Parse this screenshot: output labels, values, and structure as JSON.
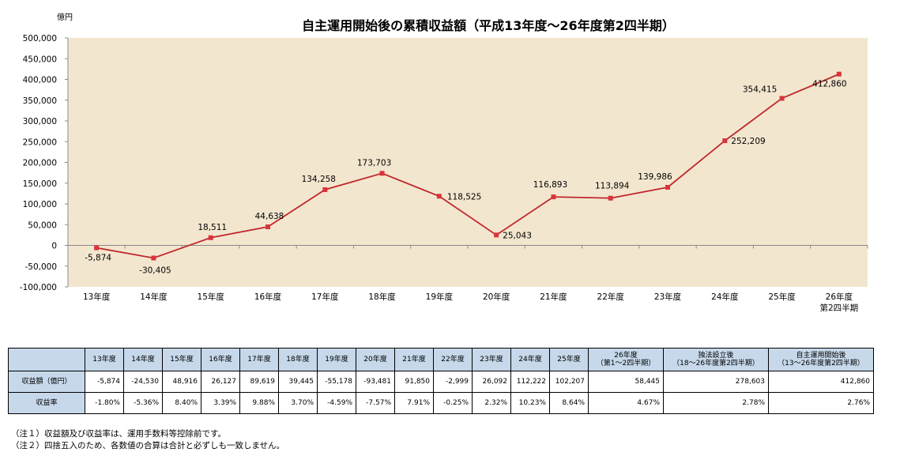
{
  "chart_data": {
    "type": "line",
    "title": "自主運用開始後の累積収益額（平成13年度～26年度第2四半期）",
    "ylabel": "億円",
    "ylim": [
      -100000,
      500000
    ],
    "yticks": [
      "500,000",
      "450,000",
      "400,000",
      "350,000",
      "300,000",
      "250,000",
      "200,000",
      "150,000",
      "100,000",
      "50,000",
      "0",
      "-50,000",
      "-100,000"
    ],
    "categories": [
      "13年度",
      "14年度",
      "15年度",
      "16年度",
      "17年度",
      "18年度",
      "19年度",
      "20年度",
      "21年度",
      "22年度",
      "23年度",
      "24年度",
      "25年度",
      "26年度"
    ],
    "category_sublabels": [
      "",
      "",
      "",
      "",
      "",
      "",
      "",
      "",
      "",
      "",
      "",
      "",
      "",
      "第2四半期"
    ],
    "series": [
      {
        "values": [
          -5874,
          -30405,
          18511,
          44638,
          134258,
          173703,
          118525,
          25043,
          116893,
          113894,
          139986,
          252209,
          354415,
          412860
        ],
        "labels": [
          "-5,874",
          "-30,405",
          "18,511",
          "44,638",
          "134,258",
          "173,703",
          "118,525",
          "25,043",
          "116,893",
          "113,894",
          "139,986",
          "252,209",
          "354,415",
          "412,860"
        ]
      }
    ],
    "grid": false,
    "line_color": "#c0282c",
    "marker_color": "#d9343a",
    "plot_background": "#f3e6cf"
  },
  "table": {
    "corner": "",
    "headers": [
      "13年度",
      "14年度",
      "15年度",
      "16年度",
      "17年度",
      "18年度",
      "19年度",
      "20年度",
      "21年度",
      "22年度",
      "23年度",
      "24年度",
      "25年度"
    ],
    "extra_headers": [
      {
        "line1": "26年度",
        "line2": "（第1～2四半期）"
      },
      {
        "line1": "独法設立後",
        "line2": "（18～26年度第2四半期）"
      },
      {
        "line1": "自主運用開始後",
        "line2": "（13～26年度第2四半期）"
      }
    ],
    "rows": [
      {
        "label": "収益額（億円）",
        "cells": [
          "-5,874",
          "-24,530",
          "48,916",
          "26,127",
          "89,619",
          "39,445",
          "-55,178",
          "-93,481",
          "91,850",
          "-2,999",
          "26,092",
          "112,222",
          "102,207",
          "58,445",
          "278,603",
          "412,860"
        ]
      },
      {
        "label": "収益率",
        "cells": [
          "-1.80%",
          "-5.36%",
          "8.40%",
          "3.39%",
          "9.88%",
          "3.70%",
          "-4.59%",
          "-7.57%",
          "7.91%",
          "-0.25%",
          "2.32%",
          "10.23%",
          "8.64%",
          "4.67%",
          "2.78%",
          "2.76%"
        ]
      }
    ],
    "header_color": "#c6d8ea"
  },
  "notes": [
    "（注１）収益額及び収益率は、運用手数料等控除前です。",
    "（注２）四捨五入のため、各数値の合算は合計と必ずしも一致しません。"
  ]
}
